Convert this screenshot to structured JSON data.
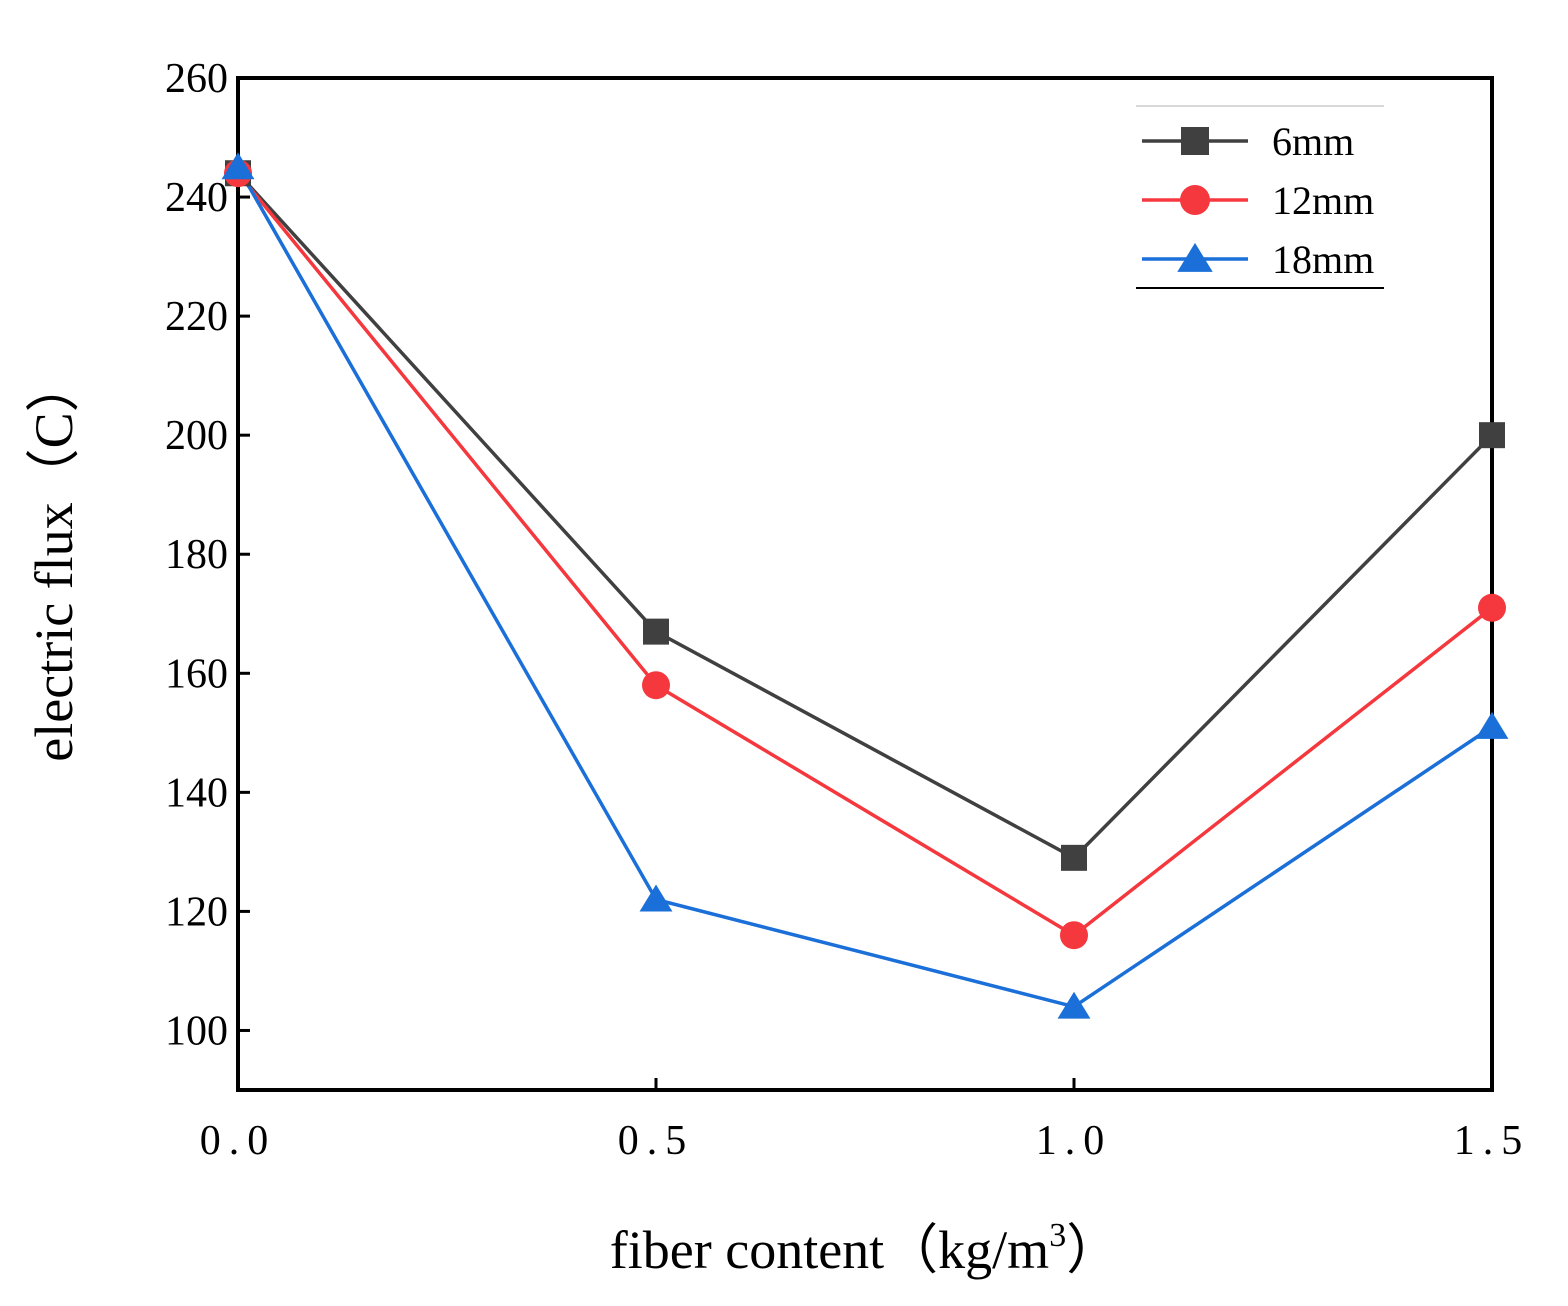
{
  "chart_data": {
    "type": "line",
    "title": "",
    "xlabel": "fiber content（kg/m",
    "xlabel_superscript": "3",
    "xlabel_close": "）",
    "ylabel": "electric flux（C）",
    "x": [
      0.0,
      0.5,
      1.0,
      1.5
    ],
    "x_tick_labels": [
      "0.0",
      "0.5",
      "1.0",
      "1.5"
    ],
    "xlim": [
      0.0,
      1.5
    ],
    "ylim": [
      90,
      260
    ],
    "y_ticks": [
      100,
      120,
      140,
      160,
      180,
      200,
      220,
      240,
      260
    ],
    "grid": false,
    "legend_position": "top-right",
    "series": [
      {
        "name": "6mm",
        "marker": "square",
        "color": "#404040",
        "values": [
          244,
          167,
          129,
          200
        ]
      },
      {
        "name": "12mm",
        "marker": "circle",
        "color": "#f5383d",
        "values": [
          244,
          158,
          116,
          171
        ]
      },
      {
        "name": "18mm",
        "marker": "triangle",
        "color": "#1a6fd8",
        "values": [
          245,
          122,
          104,
          151
        ]
      }
    ]
  }
}
